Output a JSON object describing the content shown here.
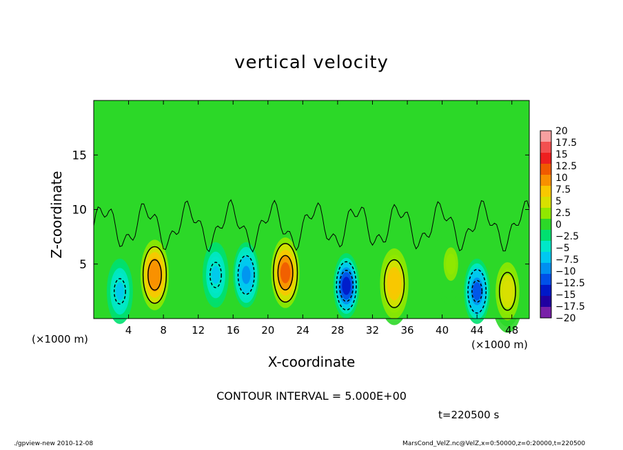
{
  "title": "vertical velocity",
  "xlabel": "X-coordinate",
  "ylabel": "Z-coordinate",
  "x_unit": "(×1000 m)",
  "contour_interval": "CONTOUR INTERVAL = 5.000E+00",
  "time_label": "t=220500 s",
  "footer_left": "./gpview-new  2010-12-08",
  "footer_right": "MarsCond_VelZ.nc@VelZ,x=0:50000,z=0:20000,t=220500",
  "chart_data": {
    "type": "heatmap",
    "title": "vertical velocity",
    "xlabel": "X-coordinate",
    "ylabel": "Z-coordinate",
    "xlim": [
      0,
      50
    ],
    "ylim": [
      0,
      20
    ],
    "x_ticks": [
      "4",
      "8",
      "12",
      "16",
      "20",
      "24",
      "28",
      "32",
      "36",
      "40",
      "44",
      "48"
    ],
    "y_ticks": [
      "5",
      "10",
      "15"
    ],
    "colorbar_levels": [
      "20",
      "17.5",
      "15",
      "12.5",
      "10",
      "7.5",
      "5",
      "2.5",
      "0",
      "−2.5",
      "−5",
      "−7.5",
      "−10",
      "−12.5",
      "−15",
      "−17.5",
      "−20"
    ],
    "colorbar_colors": [
      "#f7a0a0",
      "#f25050",
      "#ee1f1f",
      "#f05a00",
      "#f89000",
      "#f8c800",
      "#d8e000",
      "#90e800",
      "#2cd828",
      "#00e070",
      "#00e8c8",
      "#00c8f0",
      "#0090f0",
      "#0050e8",
      "#0018c8",
      "#2000a0",
      "#7820a8"
    ],
    "contour_interval": 5,
    "features": [
      {
        "x": 3,
        "z": 2.5,
        "w": -6
      },
      {
        "x": 7,
        "z": 4,
        "w": 12
      },
      {
        "x": 14,
        "z": 4,
        "w": -6
      },
      {
        "x": 17.5,
        "z": 4,
        "w": -9
      },
      {
        "x": 22,
        "z": 4.2,
        "w": 13
      },
      {
        "x": 29,
        "z": 3,
        "w": -14
      },
      {
        "x": 34.5,
        "z": 3.2,
        "w": 9
      },
      {
        "x": 41,
        "z": 5,
        "w": 3
      },
      {
        "x": 44,
        "z": 2.5,
        "w": -11
      },
      {
        "x": 47.5,
        "z": 2.5,
        "w": 7
      }
    ]
  }
}
